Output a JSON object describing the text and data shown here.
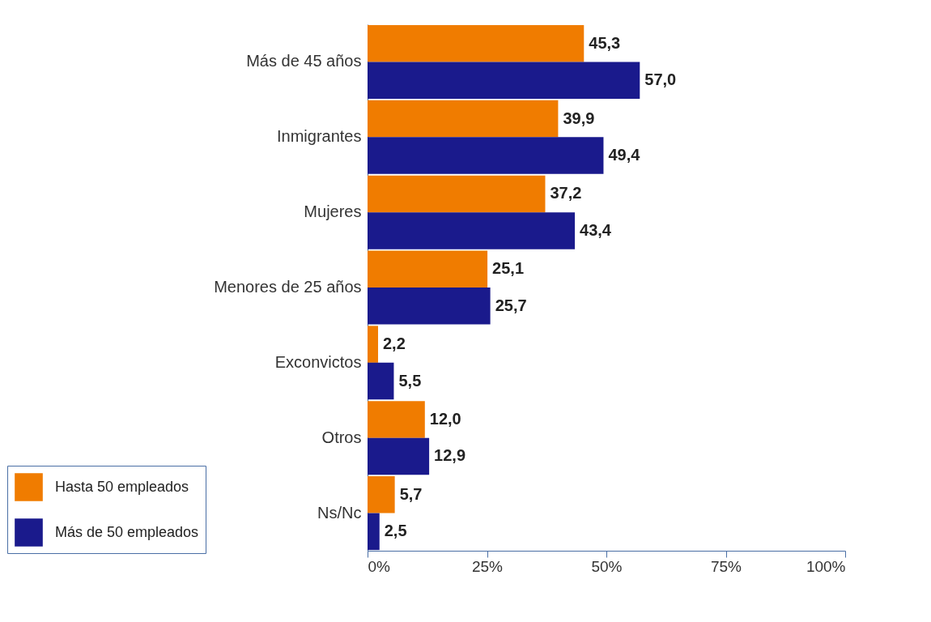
{
  "chart_data": {
    "type": "bar",
    "orientation": "horizontal",
    "categories": [
      "Más de 45 años",
      "Inmigrantes",
      "Mujeres",
      "Menores de 25 años",
      "Exconvictos",
      "Otros",
      "Ns/Nc"
    ],
    "series": [
      {
        "name": "Hasta 50 empleados",
        "color": "#f07c00",
        "values": [
          45.3,
          39.9,
          37.2,
          25.1,
          2.2,
          12.0,
          5.7
        ],
        "value_labels": [
          "45,3",
          "39,9",
          "37,2",
          "25,1",
          "2,2",
          "12,0",
          "5,7"
        ]
      },
      {
        "name": "Más de 50 empleados",
        "color": "#1a1a8c",
        "values": [
          57.0,
          49.4,
          43.4,
          25.7,
          5.5,
          12.9,
          2.5
        ],
        "value_labels": [
          "57,0",
          "49,4",
          "43,4",
          "25,7",
          "5,5",
          "12,9",
          "2,5"
        ]
      }
    ],
    "xlim": [
      0,
      100
    ],
    "xticks": [
      {
        "value": 0,
        "label": "0%"
      },
      {
        "value": 25,
        "label": "25%"
      },
      {
        "value": 50,
        "label": "50%"
      },
      {
        "value": 75,
        "label": "75%"
      },
      {
        "value": 100,
        "label": "100%"
      }
    ],
    "grid": false,
    "legend": "bottom left"
  }
}
